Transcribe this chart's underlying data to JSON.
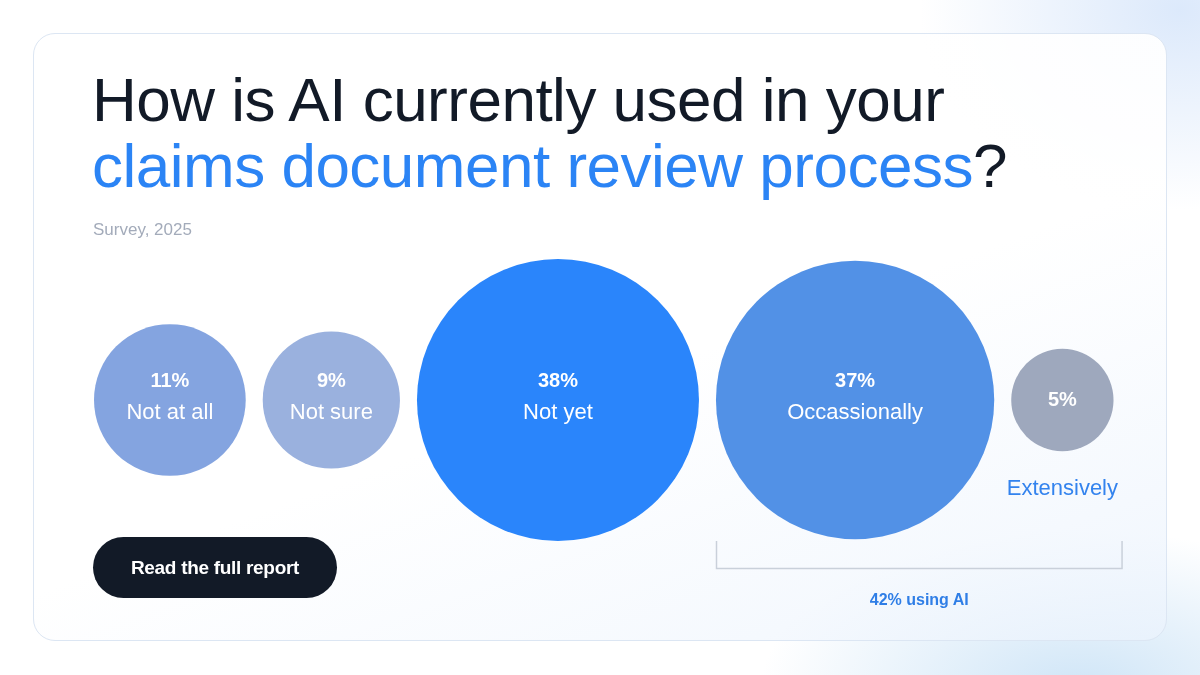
{
  "chart_data": {
    "type": "other",
    "title": "How is AI currently used in your claims document review process?",
    "subtitle": "Survey, 2025",
    "categories": [
      "Not at all",
      "Not sure",
      "Not yet",
      "Occassionally",
      "Extensively"
    ],
    "values": [
      11,
      9,
      38,
      37,
      5
    ],
    "value_labels": [
      "11%",
      "9%",
      "38%",
      "37%",
      "5%"
    ],
    "colors": [
      "#84a4e0",
      "#9ab1de",
      "#2a85fb",
      "#5291e6",
      "#9ea8bd"
    ],
    "annotations": [
      "42% using AI",
      "Read the full report"
    ]
  }
}
